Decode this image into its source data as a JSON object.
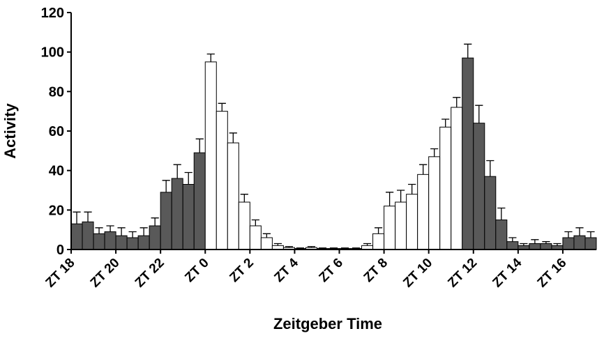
{
  "chart_data": {
    "type": "bar",
    "xlabel": "Zeitgeber Time",
    "ylabel": "Activity",
    "ylim": [
      0,
      120
    ],
    "y_ticks": [
      "0",
      "20",
      "40",
      "60",
      "80",
      "100",
      "120"
    ],
    "x_tick_labels": [
      "ZT 18",
      "ZT 20",
      "ZT 22",
      "ZT 0",
      "ZT 2",
      "ZT 4",
      "ZT 6",
      "ZT 8",
      "ZT 10",
      "ZT 12",
      "ZT 14",
      "ZT 16"
    ],
    "bin_hours": 0.5,
    "start_zt": 18,
    "values": [
      13,
      14,
      8,
      9,
      7,
      6,
      7,
      12,
      29,
      36,
      33,
      49,
      95,
      70,
      54,
      24,
      12,
      6,
      2,
      1,
      0.5,
      1,
      0.5,
      0.5,
      0.5,
      0.5,
      2,
      8,
      22,
      24,
      28,
      38,
      47,
      62,
      72,
      97,
      64,
      37,
      15,
      4,
      2,
      3,
      3,
      2,
      6,
      7,
      6
    ],
    "errors": [
      6,
      5,
      3,
      3,
      4,
      3,
      4,
      4,
      6,
      7,
      6,
      7,
      4,
      4,
      5,
      4,
      3,
      2,
      1,
      0.5,
      0.3,
      0.5,
      0.3,
      0.3,
      0.3,
      0.3,
      1,
      3,
      7,
      6,
      5,
      5,
      4,
      4,
      5,
      7,
      9,
      8,
      6,
      2,
      1,
      2,
      1,
      1,
      3,
      4,
      3
    ],
    "phase": [
      "dark",
      "dark",
      "dark",
      "dark",
      "dark",
      "dark",
      "dark",
      "dark",
      "dark",
      "dark",
      "dark",
      "dark",
      "light",
      "light",
      "light",
      "light",
      "light",
      "light",
      "light",
      "light",
      "light",
      "light",
      "light",
      "light",
      "light",
      "light",
      "light",
      "light",
      "light",
      "light",
      "light",
      "light",
      "light",
      "light",
      "light",
      "dark",
      "dark",
      "dark",
      "dark",
      "dark",
      "dark",
      "dark",
      "dark",
      "dark",
      "dark",
      "dark",
      "dark"
    ],
    "colors": {
      "dark": "#595959",
      "light": "#ffffff",
      "outline": "#000000"
    },
    "grid": false
  }
}
